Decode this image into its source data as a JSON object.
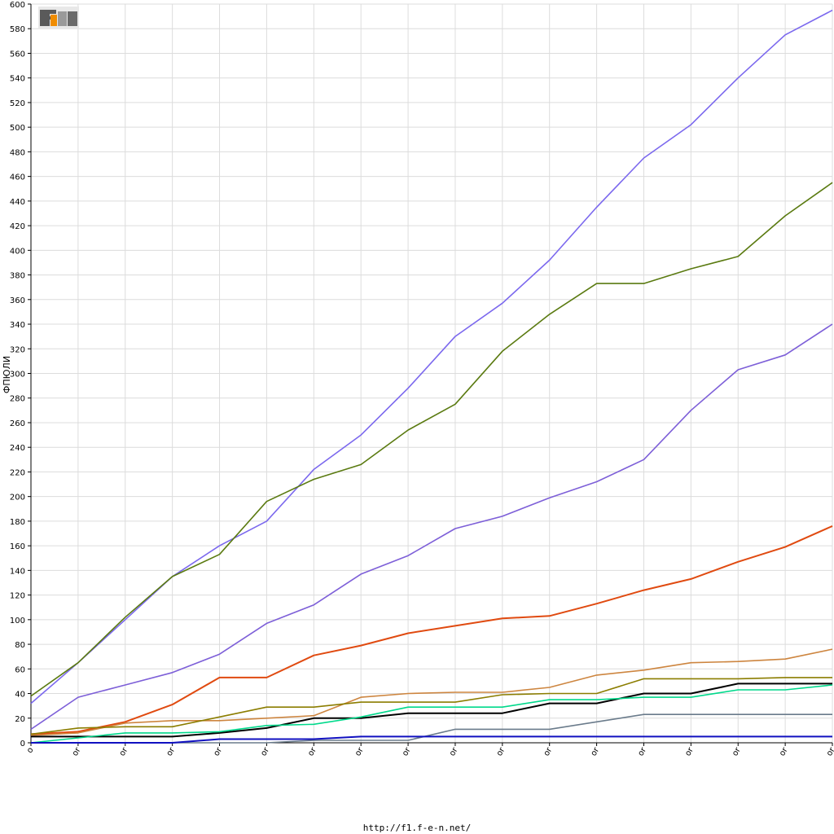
{
  "footer": {
    "url": "http://f1.f-e-n.net/"
  },
  "logo": {
    "text": "F1EN"
  },
  "chart_data": {
    "type": "line",
    "ylabel": "ФПЮЛИ",
    "ylim": [
      0,
      600
    ],
    "ytick_step": 20,
    "grid": true,
    "x_tick_labels": [
      "o",
      "or",
      "or",
      "or",
      "or",
      "or",
      "or",
      "or",
      "or",
      "or",
      "or",
      "or",
      "or",
      "or",
      "or",
      "or",
      "or",
      "or"
    ],
    "series": [
      {
        "color": "#7b68ee",
        "values": [
          32,
          65,
          100,
          135,
          160,
          180,
          222,
          250,
          288,
          330,
          357,
          392,
          435,
          475,
          502,
          540,
          575,
          595
        ]
      },
      {
        "color": "#5a7a10",
        "values": [
          38,
          65,
          102,
          135,
          153,
          196,
          214,
          226,
          254,
          275,
          318,
          348,
          373,
          373,
          385,
          395,
          428,
          455
        ]
      },
      {
        "color": "#7d5fd8",
        "values": [
          11,
          37,
          47,
          57,
          72,
          97,
          112,
          137,
          152,
          174,
          184,
          199,
          212,
          230,
          270,
          303,
          315,
          340
        ]
      },
      {
        "color": "#e04a10",
        "values": [
          7,
          9,
          17,
          31,
          53,
          53,
          71,
          79,
          89,
          95,
          101,
          103,
          113,
          124,
          133,
          147,
          159,
          176
        ]
      },
      {
        "color": "#cd853f",
        "values": [
          6,
          8,
          16,
          18,
          18,
          20,
          22,
          37,
          40,
          41,
          41,
          45,
          55,
          59,
          65,
          66,
          68,
          76
        ]
      },
      {
        "color": "#8b7d00",
        "values": [
          7,
          12,
          13,
          13,
          21,
          29,
          29,
          33,
          33,
          33,
          39,
          40,
          40,
          52,
          52,
          52,
          53,
          53
        ]
      },
      {
        "color": "#000000",
        "values": [
          5,
          5,
          5,
          5,
          8,
          12,
          20,
          20,
          24,
          24,
          24,
          32,
          32,
          40,
          40,
          48,
          48,
          48
        ]
      },
      {
        "color": "#00d98b",
        "values": [
          0,
          4,
          8,
          8,
          9,
          14,
          15,
          21,
          29,
          29,
          29,
          35,
          35,
          37,
          37,
          43,
          43,
          47
        ]
      },
      {
        "color": "#6a7b8b",
        "values": [
          0,
          0,
          0,
          0,
          0,
          0,
          2,
          2,
          2,
          11,
          11,
          11,
          17,
          23,
          23,
          23,
          23,
          23
        ]
      },
      {
        "color": "#1010c0",
        "values": [
          0,
          0,
          0,
          0,
          3,
          3,
          3,
          5,
          5,
          5,
          5,
          5,
          5,
          5,
          5,
          5,
          5,
          5
        ]
      }
    ]
  }
}
